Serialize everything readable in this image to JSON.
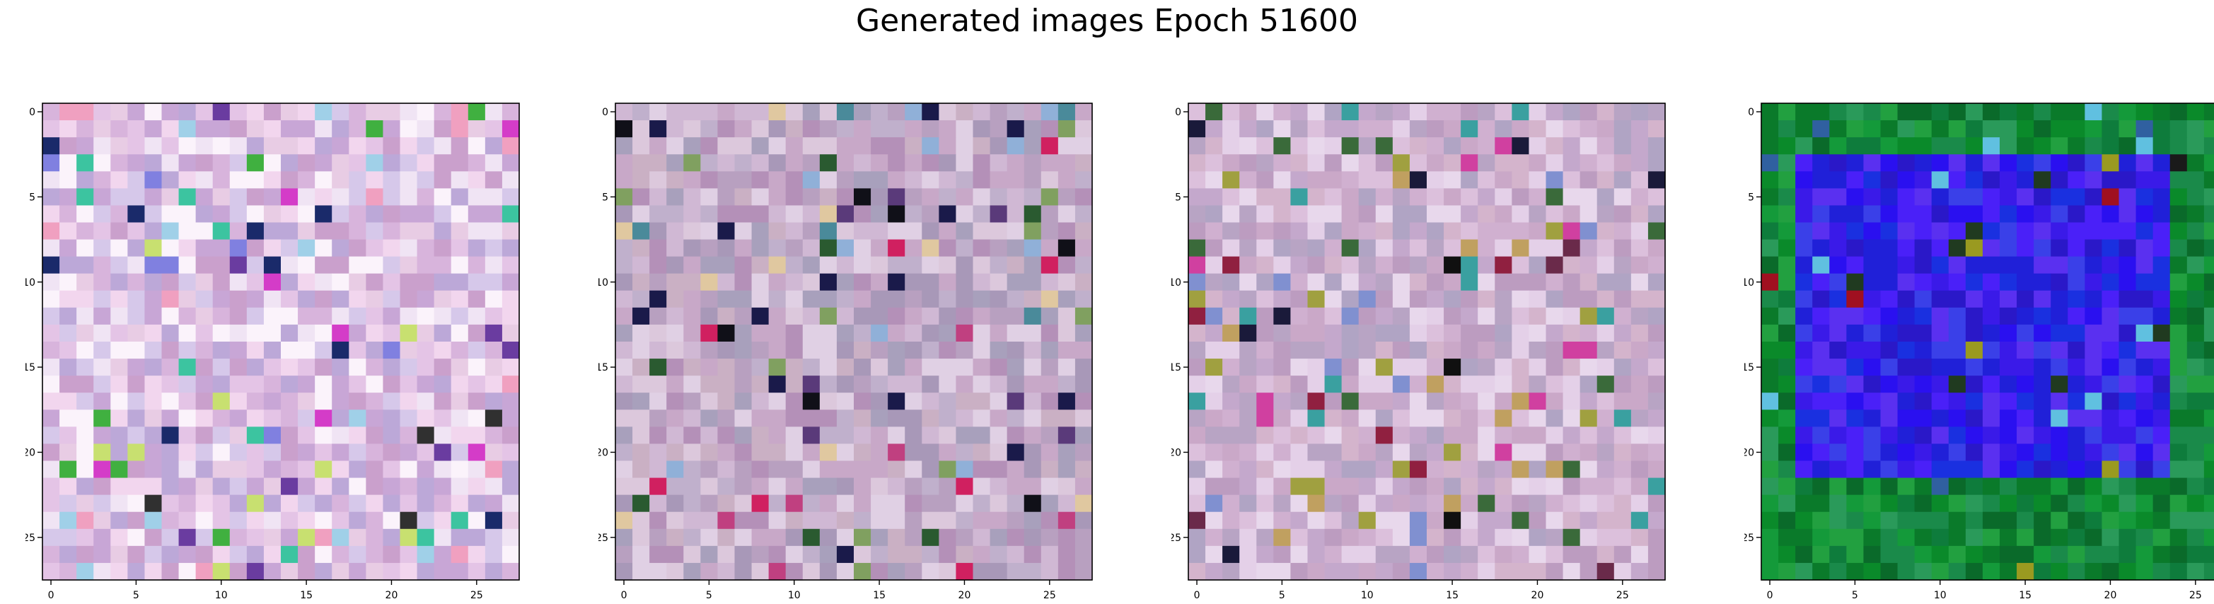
{
  "figure": {
    "title": "Generated images Epoch 51600"
  },
  "chart_data": [
    {
      "type": "heatmap",
      "title": "",
      "grid_size": [
        28,
        28
      ],
      "xlim": [
        -0.5,
        27.5
      ],
      "ylim": [
        27.5,
        -0.5
      ],
      "xticks": [
        0,
        5,
        10,
        15,
        20,
        25
      ],
      "yticks": [
        0,
        5,
        10,
        15,
        20,
        25
      ],
      "grid": false,
      "color_scheme": "pastel-pink-lavender noise",
      "palette": [
        "#f2d6ee",
        "#e4c4e6",
        "#d8b4dc",
        "#c8a6d6",
        "#f0e4f4",
        "#fbf3fb",
        "#bca8d8",
        "#e8cce4",
        "#d6c8ea",
        "#caa0cc"
      ],
      "accents": [
        "#d43cc8",
        "#3cc4a0",
        "#a0d0e8",
        "#6a3ca0",
        "#c8e070",
        "#1a2a6a",
        "#40b040",
        "#f0a0c0",
        "#303030",
        "#8080e0"
      ],
      "noise_seed": 11
    },
    {
      "type": "heatmap",
      "title": "",
      "grid_size": [
        28,
        28
      ],
      "xlim": [
        -0.5,
        27.5
      ],
      "ylim": [
        27.5,
        -0.5
      ],
      "xticks": [
        0,
        5,
        10,
        15,
        20,
        25
      ],
      "yticks": [
        0,
        5,
        10,
        15,
        20,
        25
      ],
      "grid": false,
      "color_scheme": "muted mauve-grey noise",
      "palette": [
        "#c8a8c8",
        "#b8a0c0",
        "#d0b8d4",
        "#a898b8",
        "#dcc8dc",
        "#c0b0cc",
        "#b490b8",
        "#e0d0e4",
        "#a8a0bc",
        "#cab0c4"
      ],
      "accents": [
        "#2a5a30",
        "#5a3a7a",
        "#c04080",
        "#4a8a9a",
        "#e0c8a0",
        "#1a1a4a",
        "#90b0d8",
        "#d02060",
        "#80a060",
        "#101018"
      ],
      "noise_seed": 23
    },
    {
      "type": "heatmap",
      "title": "",
      "grid_size": [
        28,
        28
      ],
      "xlim": [
        -0.5,
        27.5
      ],
      "ylim": [
        27.5,
        -0.5
      ],
      "xticks": [
        0,
        5,
        10,
        15,
        20,
        25
      ],
      "yticks": [
        0,
        5,
        10,
        15,
        20,
        25
      ],
      "grid": false,
      "color_scheme": "muted lavender-pink noise",
      "palette": [
        "#d0b0d0",
        "#c4a8cc",
        "#dcc0dc",
        "#b8a4c4",
        "#e4d0e8",
        "#caa8c8",
        "#bc9cc0",
        "#e8d8ec",
        "#b0a4c4",
        "#d4b4cc"
      ],
      "accents": [
        "#3a6a3a",
        "#6a2a4a",
        "#d040a0",
        "#3aa0a0",
        "#c0a060",
        "#1a1a3a",
        "#8090d0",
        "#902040",
        "#a0a040",
        "#101010"
      ],
      "noise_seed": 37
    },
    {
      "type": "heatmap",
      "title": "",
      "grid_size": [
        28,
        28
      ],
      "xlim": [
        -0.5,
        27.5
      ],
      "ylim": [
        27.5,
        -0.5
      ],
      "xticks": [
        0,
        5,
        10,
        15,
        20,
        25
      ],
      "yticks": [
        0,
        5,
        10,
        15,
        20,
        25
      ],
      "grid": false,
      "color_scheme": "green border, blue center blob",
      "center_region": {
        "x": [
          2,
          23
        ],
        "y": [
          3,
          21
        ]
      },
      "palette_outer": [
        "#0a8a2a",
        "#149a3a",
        "#0a7a2a",
        "#1a8a4a",
        "#0a6a2a",
        "#22a040",
        "#0e7c3c",
        "#2a9a5a"
      ],
      "palette_inner": [
        "#2a10f0",
        "#3a1ae8",
        "#2020d8",
        "#4a20f8",
        "#1a30e0",
        "#3a40e8",
        "#2a18c8",
        "#5a30f0"
      ],
      "accents": [
        "#a01020",
        "#1a1a1a",
        "#9a9a20",
        "#60c0e0",
        "#203a20",
        "#3060a0"
      ],
      "noise_seed": 51
    }
  ]
}
